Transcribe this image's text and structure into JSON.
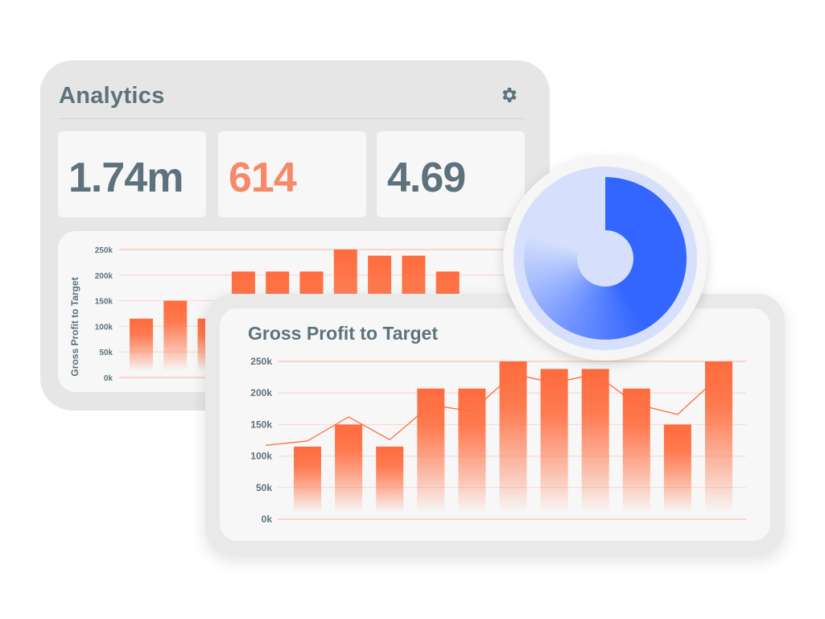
{
  "analytics": {
    "title": "Analytics",
    "settings_icon": "gear-icon",
    "stats": [
      {
        "value": "1.74m",
        "color": "#5d727c"
      },
      {
        "value": "614",
        "color": "#f5896a"
      },
      {
        "value": "4.69",
        "color": "#5d727c"
      }
    ]
  },
  "colors": {
    "bar": "#ff6b3d",
    "line": "#ff6b3d",
    "gridline": "#fcd0c0",
    "donut": "#3366ff",
    "donut_track": "#d6e0fc"
  },
  "chart_data": [
    {
      "type": "bar",
      "title": "",
      "ylabel": "Gross Profit to Target",
      "yticks": [
        "0k",
        "50k",
        "100k",
        "150k",
        "200k",
        "250k"
      ],
      "ylim": [
        0,
        250
      ],
      "grid": true,
      "series": [
        {
          "values": [
            115,
            150,
            115,
            207,
            207,
            207,
            250,
            238,
            238,
            207
          ]
        }
      ]
    },
    {
      "type": "bar",
      "title": "Gross Profit to Target",
      "ylabel": "",
      "yticks": [
        "0k",
        "50k",
        "100k",
        "150k",
        "200k",
        "250k"
      ],
      "ylim": [
        0,
        250
      ],
      "grid": true,
      "series": [
        {
          "type": "bar",
          "values": [
            115,
            150,
            115,
            207,
            207,
            250,
            238,
            238,
            207,
            150,
            250
          ]
        },
        {
          "type": "line",
          "values": [
            124,
            162,
            126,
            181,
            171,
            230,
            216,
            230,
            182,
            166,
            226
          ]
        }
      ]
    },
    {
      "type": "pie",
      "title": "",
      "donut": true,
      "filled_fraction": 0.8
    }
  ]
}
